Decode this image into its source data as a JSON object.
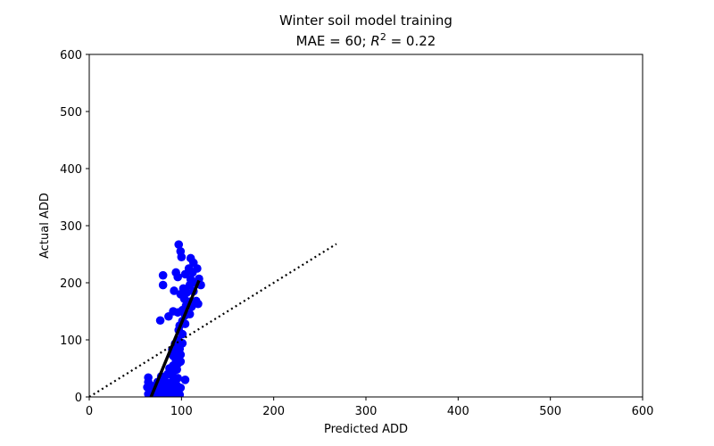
{
  "chart_data": {
    "type": "scatter",
    "title": "Winter soil model training",
    "subtitle_parts": {
      "pre": "MAE = 60; ",
      "var": "R",
      "sup": "2",
      "post": " = 0.22"
    },
    "xlabel": "Predicted ADD",
    "ylabel": "Actual ADD",
    "xlim": [
      0,
      600
    ],
    "ylim": [
      0,
      600
    ],
    "xticks": [
      "0",
      "100",
      "200",
      "300",
      "400",
      "500",
      "600"
    ],
    "yticks": [
      "0",
      "100",
      "200",
      "300",
      "400",
      "500",
      "600"
    ],
    "grid": false,
    "point_color": "#0000ff",
    "line_color": "#000000",
    "points": [
      [
        97,
        267
      ],
      [
        99,
        255
      ],
      [
        100,
        245
      ],
      [
        110,
        243
      ],
      [
        113,
        235
      ],
      [
        108,
        225
      ],
      [
        117,
        225
      ],
      [
        80,
        213
      ],
      [
        94,
        218
      ],
      [
        104,
        215
      ],
      [
        112,
        218
      ],
      [
        96,
        210
      ],
      [
        110,
        206
      ],
      [
        119,
        207
      ],
      [
        80,
        196
      ],
      [
        102,
        190
      ],
      [
        109,
        196
      ],
      [
        114,
        200
      ],
      [
        121,
        196
      ],
      [
        99,
        180
      ],
      [
        106,
        183
      ],
      [
        113,
        185
      ],
      [
        103,
        172
      ],
      [
        109,
        167
      ],
      [
        116,
        168
      ],
      [
        118,
        163
      ],
      [
        92,
        186
      ],
      [
        111,
        158
      ],
      [
        105,
        160
      ],
      [
        101,
        152
      ],
      [
        91,
        150
      ],
      [
        96,
        148
      ],
      [
        86,
        141
      ],
      [
        77,
        134
      ],
      [
        104,
        143
      ],
      [
        109,
        145
      ],
      [
        101,
        133
      ],
      [
        98,
        125
      ],
      [
        104,
        128
      ],
      [
        97,
        117
      ],
      [
        101,
        110
      ],
      [
        96,
        100
      ],
      [
        101,
        94
      ],
      [
        93,
        93
      ],
      [
        98,
        84
      ],
      [
        90,
        83
      ],
      [
        94,
        78
      ],
      [
        99,
        74
      ],
      [
        91,
        72
      ],
      [
        94,
        65
      ],
      [
        99,
        62
      ],
      [
        96,
        58
      ],
      [
        91,
        55
      ],
      [
        87,
        50
      ],
      [
        95,
        48
      ],
      [
        89,
        45
      ],
      [
        85,
        40
      ],
      [
        91,
        36
      ],
      [
        96,
        33
      ],
      [
        78,
        36
      ],
      [
        74,
        26
      ],
      [
        64,
        34
      ],
      [
        64,
        26
      ],
      [
        82,
        28
      ],
      [
        88,
        25
      ],
      [
        91,
        22
      ],
      [
        95,
        20
      ],
      [
        99,
        16
      ],
      [
        84,
        15
      ],
      [
        80,
        12
      ],
      [
        86,
        8
      ],
      [
        92,
        5
      ],
      [
        88,
        2
      ],
      [
        82,
        3
      ],
      [
        76,
        5
      ],
      [
        70,
        7
      ],
      [
        64,
        5
      ],
      [
        63,
        17
      ],
      [
        68,
        19
      ],
      [
        73,
        14
      ],
      [
        78,
        20
      ],
      [
        104,
        30
      ],
      [
        98,
        4
      ],
      [
        94,
        10
      ],
      [
        89,
        14
      ],
      [
        84,
        5
      ],
      [
        79,
        9
      ],
      [
        97,
        0
      ]
    ],
    "fit_line": {
      "x": [
        67,
        119
      ],
      "y": [
        0,
        204
      ]
    },
    "identity_line": {
      "x": [
        0,
        268
      ],
      "y": [
        0,
        268
      ]
    }
  }
}
